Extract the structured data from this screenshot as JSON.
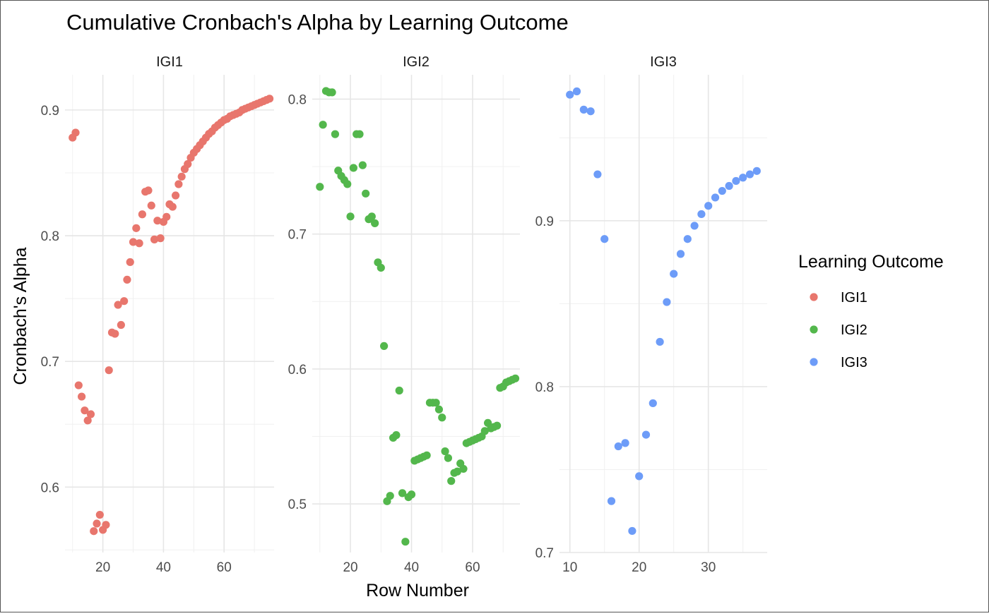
{
  "chart_data": {
    "type": "scatter",
    "title": "Cumulative Cronbach's Alpha by Learning Outcome",
    "xlabel": "Row Number",
    "ylabel": "Cronbach's Alpha",
    "legend": {
      "title": "Learning Outcome",
      "placement": "right",
      "entries": [
        {
          "name": "IGI1",
          "color": "#E8766D"
        },
        {
          "name": "IGI2",
          "color": "#53B74C"
        },
        {
          "name": "IGI3",
          "color": "#6D9CF8"
        }
      ]
    },
    "grid": true,
    "panels": [
      {
        "name": "IGI1",
        "color": "#E8766D",
        "xlim": [
          7.5,
          76.5
        ],
        "ylim": [
          0.548,
          0.928
        ],
        "xticks": [
          20,
          40,
          60
        ],
        "yticks": [
          0.6,
          0.7,
          0.8,
          0.9
        ],
        "x": [
          10,
          11,
          12,
          13,
          14,
          15,
          16,
          17,
          18,
          19,
          20,
          21,
          22,
          23,
          24,
          25,
          26,
          27,
          28,
          29,
          30,
          31,
          32,
          33,
          34,
          35,
          36,
          37,
          38,
          39,
          40,
          41,
          42,
          43,
          44,
          45,
          46,
          47,
          48,
          49,
          50,
          51,
          52,
          53,
          54,
          55,
          56,
          57,
          58,
          59,
          60,
          61,
          62,
          63,
          64,
          65,
          66,
          67,
          68,
          69,
          70,
          71,
          72,
          73,
          74,
          75
        ],
        "y": [
          0.878,
          0.882,
          0.681,
          0.672,
          0.661,
          0.653,
          0.658,
          0.565,
          0.571,
          0.578,
          0.566,
          0.57,
          0.693,
          0.723,
          0.722,
          0.745,
          0.729,
          0.748,
          0.765,
          0.779,
          0.795,
          0.806,
          0.794,
          0.817,
          0.835,
          0.836,
          0.824,
          0.797,
          0.812,
          0.798,
          0.811,
          0.815,
          0.825,
          0.823,
          0.832,
          0.841,
          0.847,
          0.853,
          0.857,
          0.862,
          0.866,
          0.869,
          0.872,
          0.875,
          0.878,
          0.881,
          0.883,
          0.886,
          0.888,
          0.89,
          0.892,
          0.893,
          0.895,
          0.896,
          0.897,
          0.898,
          0.9,
          0.901,
          0.902,
          0.903,
          0.904,
          0.905,
          0.906,
          0.907,
          0.908,
          0.909
        ]
      },
      {
        "name": "IGI2",
        "color": "#53B74C",
        "xlim": [
          7.5,
          75.5
        ],
        "ylim": [
          0.464,
          0.818
        ],
        "xticks": [
          20,
          40,
          60
        ],
        "yticks": [
          0.5,
          0.6,
          0.7,
          0.8
        ],
        "x": [
          10,
          11,
          12,
          13,
          14,
          15,
          16,
          17,
          18,
          19,
          20,
          21,
          22,
          23,
          24,
          25,
          26,
          27,
          28,
          29,
          30,
          31,
          32,
          33,
          34,
          35,
          36,
          37,
          38,
          39,
          40,
          41,
          42,
          43,
          44,
          45,
          46,
          47,
          48,
          49,
          50,
          51,
          52,
          53,
          54,
          55,
          56,
          57,
          58,
          59,
          60,
          61,
          62,
          63,
          64,
          65,
          66,
          67,
          68,
          69,
          70,
          71,
          72,
          73,
          74
        ],
        "y": [
          0.735,
          0.781,
          0.806,
          0.805,
          0.805,
          0.774,
          0.747,
          0.743,
          0.74,
          0.737,
          0.713,
          0.749,
          0.774,
          0.774,
          0.751,
          0.73,
          0.711,
          0.713,
          0.708,
          0.679,
          0.675,
          0.617,
          0.502,
          0.506,
          0.549,
          0.551,
          0.584,
          0.508,
          0.472,
          0.505,
          0.507,
          0.532,
          0.533,
          0.534,
          0.535,
          0.536,
          0.575,
          0.575,
          0.575,
          0.57,
          0.564,
          0.539,
          0.534,
          0.517,
          0.523,
          0.524,
          0.53,
          0.526,
          0.545,
          0.546,
          0.547,
          0.548,
          0.549,
          0.55,
          0.554,
          0.56,
          0.556,
          0.557,
          0.558,
          0.586,
          0.587,
          0.59,
          0.591,
          0.592,
          0.593
        ]
      },
      {
        "name": "IGI3",
        "color": "#6D9CF8",
        "xlim": [
          8.5,
          38.5
        ],
        "ylim": [
          0.7,
          0.988
        ],
        "xticks": [
          10,
          20,
          30
        ],
        "yticks": [
          0.7,
          0.8,
          0.9
        ],
        "x": [
          10,
          11,
          12,
          13,
          14,
          15,
          16,
          17,
          18,
          19,
          20,
          21,
          22,
          23,
          24,
          25,
          26,
          27,
          28,
          29,
          30,
          31,
          32,
          33,
          34,
          35,
          36,
          37
        ],
        "y": [
          0.976,
          0.978,
          0.967,
          0.966,
          0.928,
          0.889,
          0.731,
          0.764,
          0.766,
          0.713,
          0.746,
          0.771,
          0.79,
          0.827,
          0.851,
          0.868,
          0.88,
          0.889,
          0.897,
          0.904,
          0.909,
          0.914,
          0.918,
          0.921,
          0.924,
          0.926,
          0.928,
          0.93
        ]
      }
    ]
  }
}
